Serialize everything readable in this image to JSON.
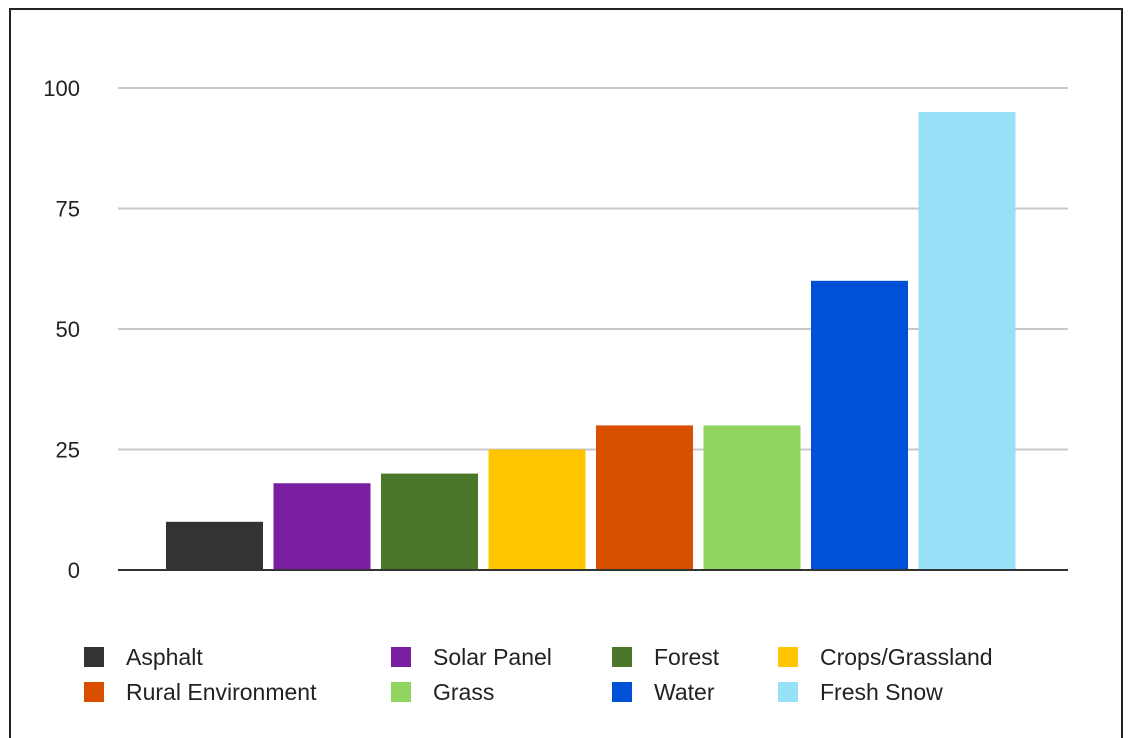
{
  "chart_data": {
    "type": "bar",
    "categories": [
      "Asphalt",
      "Solar Panel",
      "Forest",
      "Crops/Grassland",
      "Rural Environment",
      "Grass",
      "Water",
      "Fresh Snow"
    ],
    "values": [
      10,
      18,
      20,
      25,
      30,
      30,
      60,
      95
    ],
    "colors": [
      "#333333",
      "#7a1fa2",
      "#4a7729",
      "#ffc600",
      "#d84f00",
      "#92d460",
      "#0050d8",
      "#96e0f8"
    ],
    "title": "",
    "xlabel": "",
    "ylabel": "",
    "ylim": [
      0,
      100
    ],
    "yticks": [
      "0",
      "25",
      "50",
      "75",
      "100"
    ],
    "grid": true,
    "legend_position": "bottom"
  }
}
